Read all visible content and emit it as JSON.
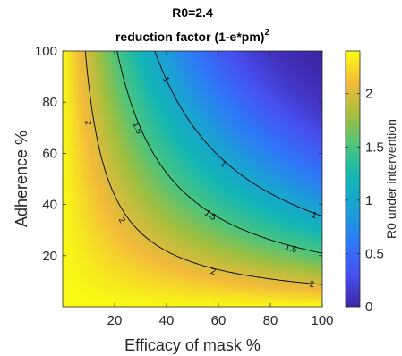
{
  "chart_data": {
    "type": "heatmap",
    "title": "R0=2.4",
    "subtitle_text": "reduction factor (1-e*pm)",
    "subtitle_sup": "2",
    "xlabel": "Efficacy of mask %",
    "ylabel": "Adherence %",
    "colorbar_label": "R0 under intervention",
    "R0": 2.4,
    "x_range": [
      0,
      100
    ],
    "y_range": [
      0,
      100
    ],
    "x_ticks": [
      20,
      40,
      60,
      80,
      100
    ],
    "y_ticks": [
      20,
      40,
      60,
      80,
      100
    ],
    "colorbar_ticks": [
      0,
      0.5,
      1,
      1.5,
      2
    ],
    "colorbar_range": [
      0,
      2.4
    ],
    "contour_levels": [
      1,
      1.5,
      2
    ],
    "contour_labels": [
      {
        "level": 1,
        "text": "1",
        "x": 40,
        "y": 89
      },
      {
        "level": 1,
        "text": "1",
        "x": 62,
        "y": 56
      },
      {
        "level": 1,
        "text": "1",
        "x": 97,
        "y": 36
      },
      {
        "level": 1.5,
        "text": "1.5",
        "x": 29,
        "y": 70
      },
      {
        "level": 1.5,
        "text": "1.5",
        "x": 57,
        "y": 36
      },
      {
        "level": 1.5,
        "text": "1.5",
        "x": 88,
        "y": 23
      },
      {
        "level": 2,
        "text": "2",
        "x": 10,
        "y": 72
      },
      {
        "level": 2,
        "text": "2",
        "x": 23,
        "y": 34
      },
      {
        "level": 2,
        "text": "2",
        "x": 58,
        "y": 14
      },
      {
        "level": 2,
        "text": "2",
        "x": 96,
        "y": 9
      }
    ],
    "colormap": "parula",
    "grid": false
  }
}
